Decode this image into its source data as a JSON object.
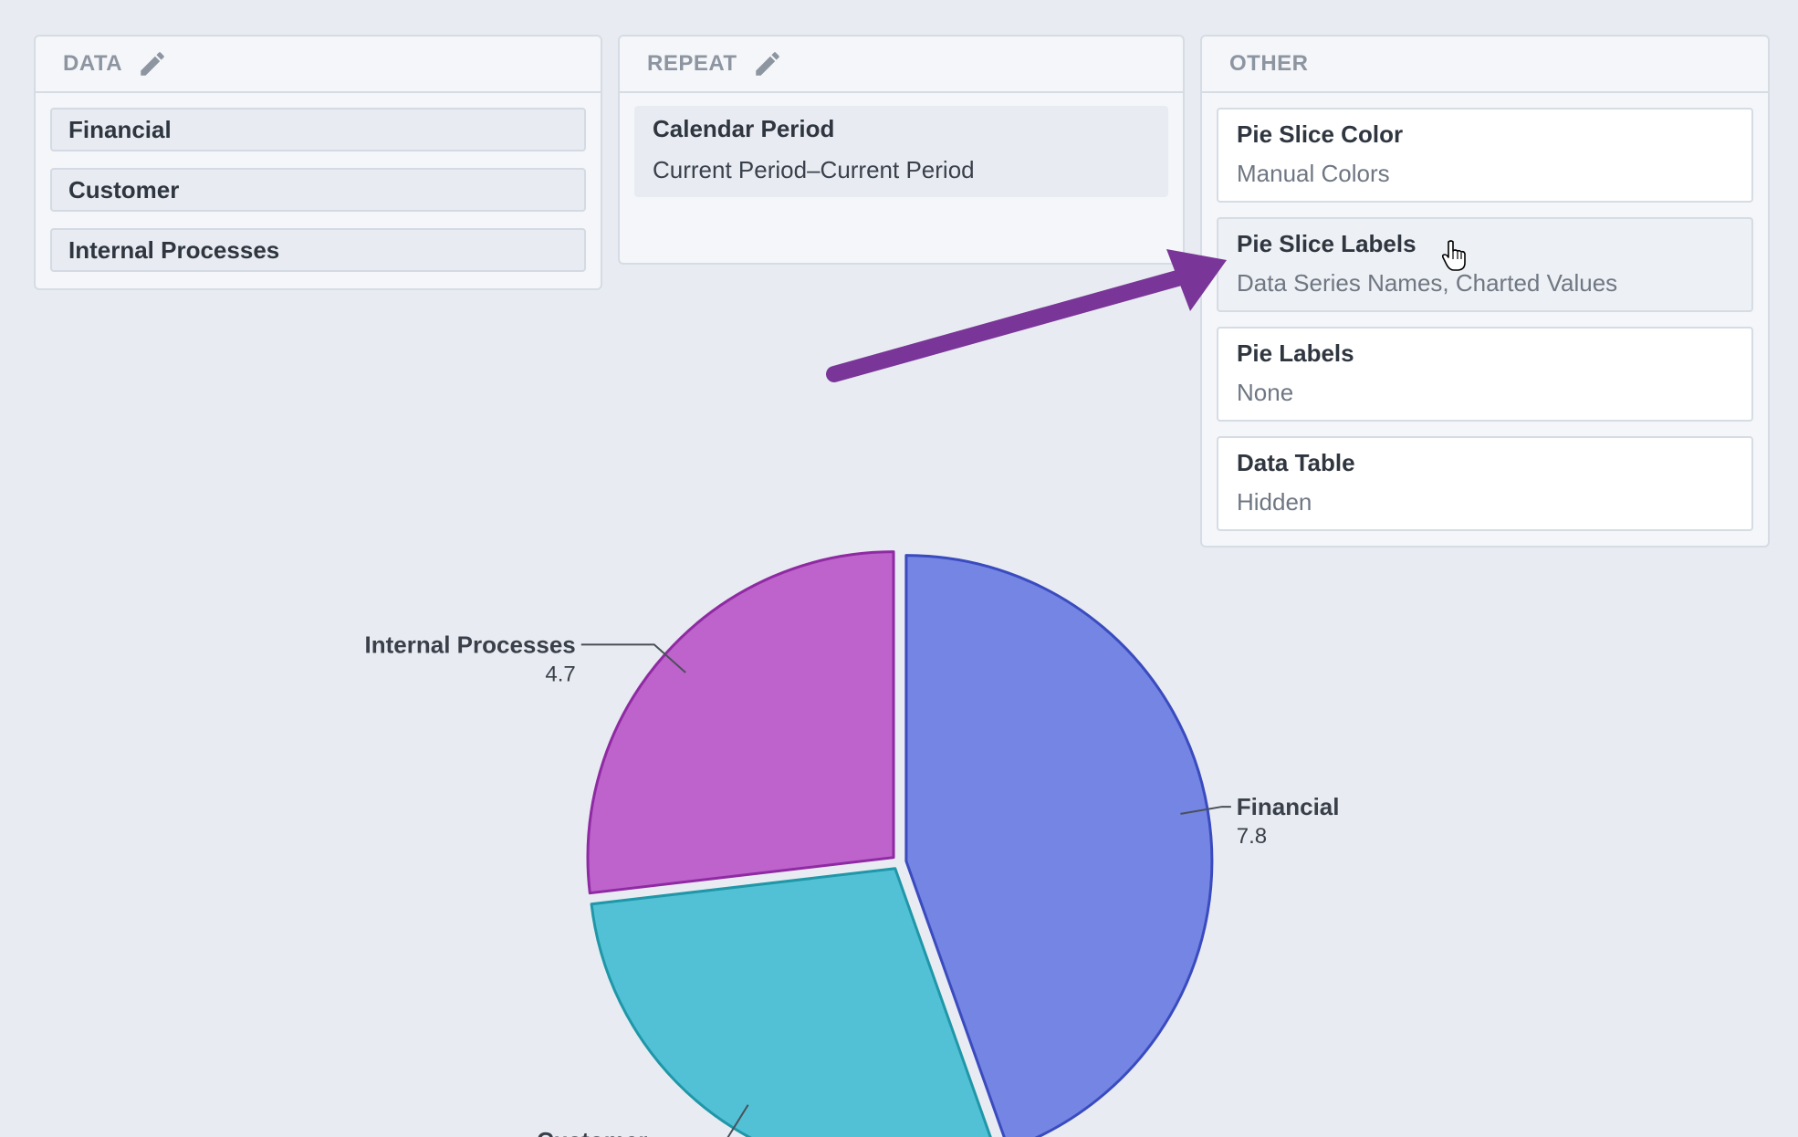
{
  "data_panel": {
    "title": "DATA",
    "items": [
      "Financial",
      "Customer",
      "Internal Processes"
    ]
  },
  "repeat_panel": {
    "title": "REPEAT",
    "item_title": "Calendar Period",
    "item_value": "Current Period–Current Period"
  },
  "other_panel": {
    "title": "OTHER",
    "options": [
      {
        "title": "Pie Slice Color",
        "value": "Manual Colors"
      },
      {
        "title": "Pie Slice Labels",
        "value": "Data Series Names, Charted Values"
      },
      {
        "title": "Pie Labels",
        "value": "None"
      },
      {
        "title": "Data Table",
        "value": "Hidden"
      }
    ]
  },
  "icons": [
    "pencil-icon",
    "arrow-annotation",
    "hand-cursor-icon"
  ],
  "colors": {
    "arrow": "#7a3598",
    "financial": "#7485e3",
    "customer": "#52c1d5",
    "internal": "#be62cc"
  },
  "chart_data": {
    "type": "pie",
    "slices": [
      {
        "name": "Financial",
        "value": 7.8,
        "fill": "#7485e3",
        "stroke": "#3a4bbf"
      },
      {
        "name": "Customer",
        "value": 5.0,
        "fill": "#52c1d5",
        "stroke": "#1f97a8"
      },
      {
        "name": "Internal Processes",
        "value": 4.7,
        "fill": "#be62cc",
        "stroke": "#8f2aa3"
      }
    ],
    "labels": [
      {
        "name": "Financial",
        "value": "7.8"
      },
      {
        "name": "Customer",
        "value": ""
      },
      {
        "name": "Internal Processes",
        "value": "4.7"
      }
    ]
  }
}
